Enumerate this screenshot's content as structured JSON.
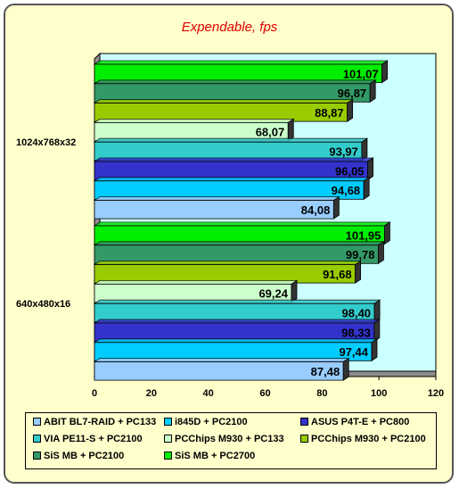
{
  "chart_data": {
    "type": "bar",
    "orientation": "horizontal",
    "title": "Expendable, fps",
    "xlabel": "",
    "ylabel": "",
    "xlim": [
      0,
      120
    ],
    "x_ticks": [
      "0",
      "20",
      "40",
      "60",
      "80",
      "100",
      "120"
    ],
    "grid": false,
    "legend_position": "bottom",
    "categories": [
      "1024x768x32",
      "640x480x16"
    ],
    "series": [
      {
        "name": "ABIT BL7-RAID + PC133",
        "color": "#99ccff",
        "values": [
          84.08,
          87.48
        ],
        "labels": [
          "84,08",
          "87,48"
        ]
      },
      {
        "name": "i845D + PC2100",
        "color": "#00ccff",
        "values": [
          94.68,
          97.44
        ],
        "labels": [
          "94,68",
          "97,44"
        ]
      },
      {
        "name": "ASUS P4T-E + PC800",
        "color": "#3333cc",
        "values": [
          96.05,
          98.33
        ],
        "labels": [
          "96,05",
          "98,33"
        ]
      },
      {
        "name": "VIA PE11-S + PC2100",
        "color": "#33cccc",
        "values": [
          93.97,
          98.4
        ],
        "labels": [
          "93,97",
          "98,40"
        ]
      },
      {
        "name": "PCChips M930 + PC133",
        "color": "#ccffcc",
        "values": [
          68.07,
          69.24
        ],
        "labels": [
          "68,07",
          "69,24"
        ]
      },
      {
        "name": "PCChips M930 + PC2100",
        "color": "#99cc00",
        "values": [
          88.87,
          91.68
        ],
        "labels": [
          "88,87",
          "91,68"
        ]
      },
      {
        "name": "SiS MB + PC2100",
        "color": "#339966",
        "values": [
          96.87,
          99.78
        ],
        "labels": [
          "96,87",
          "99,78"
        ]
      },
      {
        "name": "SiS MB + PC2700",
        "color": "#00ee00",
        "values": [
          101.07,
          101.95
        ],
        "labels": [
          "101,07",
          "101,95"
        ]
      }
    ]
  }
}
